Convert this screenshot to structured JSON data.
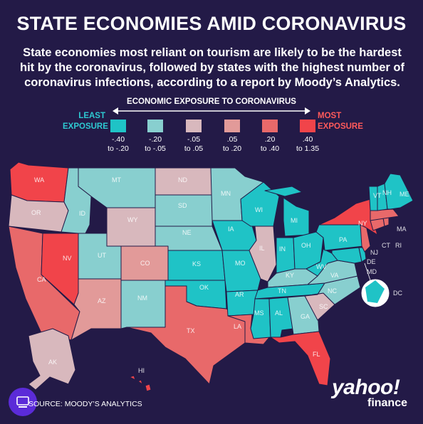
{
  "title": "STATE ECONOMIES AMID CORONAVIRUS",
  "subtitle": "State economies most reliant on tourism are likely to be the hardest hit by the coronavirus, followed by states with the highest number of coronavirus infections, according to a report by Moody’s Analytics.",
  "legend": {
    "title": "ECONOMIC EXPOSURE TO CORONAVIRUS",
    "least_line1": "LEAST",
    "least_line2": "EXPOSURE",
    "most_line1": "MOST",
    "most_line2": "EXPOSURE",
    "bins": [
      {
        "l1": "-.40",
        "l2": "to -.20",
        "color": "#1fc3c6"
      },
      {
        "l1": "-.20",
        "l2": "to -.05",
        "color": "#88cfcf"
      },
      {
        "l1": "-.05",
        "l2": "to .05",
        "color": "#d8b8bd"
      },
      {
        "l1": ".05",
        "l2": "to .20",
        "color": "#e29a99"
      },
      {
        "l1": ".20",
        "l2": "to .40",
        "color": "#e8696a"
      },
      {
        "l1": ".40",
        "l2": "to 1.35",
        "color": "#f1444a"
      }
    ]
  },
  "states": {
    "WA": "WA",
    "OR": "OR",
    "CA": "CA",
    "NV": "NV",
    "ID": "ID",
    "MT": "MT",
    "WY": "WY",
    "UT": "UT",
    "AZ": "AZ",
    "CO": "CO",
    "NM": "NM",
    "ND": "ND",
    "SD": "SD",
    "NE": "NE",
    "KS": "KS",
    "OK": "OK",
    "TX": "TX",
    "MN": "MN",
    "IA": "IA",
    "MO": "MO",
    "AR": "AR",
    "LA": "LA",
    "WI": "WI",
    "IL": "IL",
    "MI": "MI",
    "IN": "IN",
    "OH": "OH",
    "KY": "KY",
    "TN": "TN",
    "MS": "MS",
    "AL": "AL",
    "GA": "GA",
    "FL": "FL",
    "SC": "SC",
    "NC": "NC",
    "VA": "VA",
    "WV": "WV",
    "PA": "PA",
    "NY": "NY",
    "VT": "VT",
    "NH": "NH",
    "ME": "ME",
    "MA": "MA",
    "CT": "CT",
    "RI": "RI",
    "NJ": "NJ",
    "DE": "DE",
    "MD": "MD",
    "DC": "DC",
    "AK": "AK",
    "HI": "HI"
  },
  "colors": {
    "bin1": "#1fc3c6",
    "bin2": "#88cfcf",
    "bin3": "#d8b8bd",
    "bin4": "#e29a99",
    "bin5": "#e8696a",
    "bin6": "#f1444a"
  },
  "source": "SOURCE: MOODY’S ANALYTICS",
  "brand": {
    "name": "yahoo!",
    "sub": "finance"
  }
}
